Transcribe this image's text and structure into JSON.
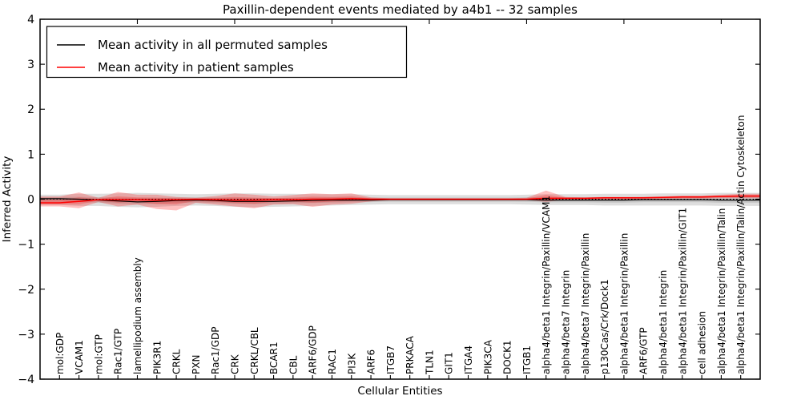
{
  "title": "Paxillin-dependent events mediated by a4b1 -- 32 samples",
  "axes": {
    "x_label": "Cellular Entities",
    "y_label": "Inferred Activity",
    "y_ticks": [
      "4",
      "3",
      "2",
      "1",
      "0",
      "−1",
      "−2",
      "−3",
      "−4"
    ]
  },
  "legend": {
    "entries": [
      {
        "label": "Mean activity in all permuted samples",
        "color": "#000000"
      },
      {
        "label": "Mean activity in patient samples",
        "color": "#ff0000"
      }
    ]
  },
  "colors": {
    "frame": "#000000",
    "permuted_line": "#000000",
    "patient_line": "#ff0000",
    "permuted_band": "#000000",
    "patient_band": "#ff0000",
    "background": "#ffffff"
  },
  "chart_data": {
    "type": "line",
    "title": "Paxillin-dependent events mediated by a4b1 -- 32 samples",
    "xlabel": "Cellular Entities",
    "ylabel": "Inferred Activity",
    "ylim": [
      -4,
      4
    ],
    "xlim_units": [
      0,
      37
    ],
    "y_major_ticks": [
      -4,
      -3,
      -2,
      -1,
      0,
      1,
      2,
      3,
      4
    ],
    "x_major_tick_units": [
      5,
      10,
      15,
      20,
      25,
      30,
      35
    ],
    "grid": false,
    "zero_reference_line": true,
    "legend_position": "upper left",
    "categories": [
      "mol:GDP",
      "VCAM1",
      "mol:GTP",
      "Rac1/GTP",
      "lamellipodium assembly",
      "PIK3R1",
      "CRKL",
      "PXN",
      "Rac1/GDP",
      "CRK",
      "CRKL/CBL",
      "BCAR1",
      "CBL",
      "ARF6/GDP",
      "RAC1",
      "PI3K",
      "ARF6",
      "ITGB7",
      "PRKACA",
      "TLN1",
      "GIT1",
      "ITGA4",
      "PIK3CA",
      "DOCK1",
      "ITGB1",
      "alpha4/beta1 Integrin/Paxillin/VCAM1",
      "alpha4/beta7 Integrin",
      "alpha4/beta7 Integrin/Paxillin",
      "p130Cas/Crk/Dock1",
      "alpha4/beta1 Integrin/Paxillin",
      "ARF6/GTP",
      "alpha4/beta1 Integrin",
      "alpha4/beta1 Integrin/Paxillin/GIT1",
      "cell adhesion",
      "alpha4/beta1 Integrin/Paxillin/Talin",
      "alpha4/beta1 Integrin/Paxillin/Talin/Actin Cytoskeleton"
    ],
    "series": [
      {
        "name": "Mean activity in all permuted samples",
        "color": "#000000",
        "values": [
          0.01,
          0.0,
          -0.02,
          -0.04,
          -0.06,
          -0.05,
          -0.03,
          -0.02,
          -0.03,
          -0.05,
          -0.05,
          -0.05,
          -0.04,
          -0.03,
          -0.02,
          -0.02,
          -0.02,
          -0.01,
          -0.01,
          -0.01,
          -0.01,
          -0.01,
          -0.01,
          -0.01,
          -0.01,
          -0.02,
          -0.02,
          -0.02,
          -0.02,
          -0.02,
          -0.01,
          -0.01,
          -0.01,
          -0.01,
          -0.02,
          -0.02
        ]
      },
      {
        "name": "Mean activity in patient samples",
        "color": "#ff0000",
        "values": [
          -0.08,
          -0.05,
          -0.01,
          -0.01,
          -0.01,
          -0.02,
          -0.01,
          0.0,
          -0.01,
          -0.02,
          -0.02,
          -0.01,
          -0.01,
          0.0,
          0.0,
          0.01,
          0.0,
          0.0,
          0.0,
          0.0,
          0.0,
          0.0,
          0.0,
          0.0,
          0.0,
          0.02,
          0.02,
          0.02,
          0.03,
          0.03,
          0.03,
          0.04,
          0.05,
          0.05,
          0.06,
          0.07
        ]
      }
    ],
    "bands": [
      {
        "name": "Permuted samples activity range",
        "color": "#000000",
        "opacity": 0.13,
        "upper": [
          0.1,
          0.12,
          0.12,
          0.13,
          0.14,
          0.13,
          0.12,
          0.11,
          0.12,
          0.13,
          0.13,
          0.12,
          0.12,
          0.11,
          0.11,
          0.11,
          0.1,
          0.09,
          0.09,
          0.09,
          0.09,
          0.09,
          0.09,
          0.09,
          0.1,
          0.11,
          0.11,
          0.11,
          0.12,
          0.12,
          0.12,
          0.13,
          0.13,
          0.13,
          0.14,
          0.14
        ],
        "lower": [
          -0.13,
          -0.15,
          -0.15,
          -0.17,
          -0.18,
          -0.17,
          -0.15,
          -0.14,
          -0.15,
          -0.17,
          -0.18,
          -0.17,
          -0.16,
          -0.15,
          -0.14,
          -0.13,
          -0.12,
          -0.11,
          -0.11,
          -0.11,
          -0.11,
          -0.11,
          -0.11,
          -0.11,
          -0.12,
          -0.13,
          -0.13,
          -0.13,
          -0.14,
          -0.14,
          -0.14,
          -0.14,
          -0.14,
          -0.14,
          -0.15,
          -0.15
        ]
      },
      {
        "name": "Patient samples activity range",
        "color": "#ff0000",
        "opacity": 0.25,
        "upper": [
          0.06,
          0.15,
          0.03,
          0.16,
          0.1,
          0.1,
          0.05,
          0.03,
          0.07,
          0.13,
          0.1,
          0.06,
          0.09,
          0.13,
          0.11,
          0.13,
          0.04,
          0.02,
          0.02,
          0.02,
          0.02,
          0.02,
          0.02,
          0.02,
          0.03,
          0.19,
          0.05,
          0.04,
          0.05,
          0.05,
          0.05,
          0.06,
          0.08,
          0.08,
          0.1,
          0.12
        ],
        "lower": [
          -0.16,
          -0.2,
          -0.06,
          -0.16,
          -0.12,
          -0.22,
          -0.25,
          -0.08,
          -0.12,
          -0.16,
          -0.2,
          -0.12,
          -0.11,
          -0.17,
          -0.12,
          -0.1,
          -0.05,
          -0.02,
          -0.02,
          -0.02,
          -0.02,
          -0.02,
          -0.02,
          -0.02,
          -0.02,
          -0.06,
          -0.01,
          -0.01,
          -0.01,
          -0.01,
          0.0,
          0.0,
          0.01,
          0.01,
          0.02,
          0.02
        ]
      }
    ]
  }
}
